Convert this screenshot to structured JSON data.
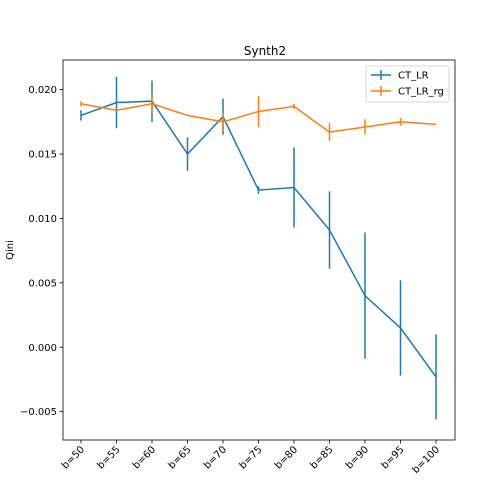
{
  "chart_data": {
    "type": "line",
    "title": "Synth2",
    "xlabel": "",
    "ylabel": "Qini",
    "categories": [
      "b=50",
      "b=55",
      "b=60",
      "b=65",
      "b=70",
      "b=75",
      "b=80",
      "b=85",
      "b=90",
      "b=95",
      "b=100"
    ],
    "ylim": [
      -0.0072,
      0.0223
    ],
    "yticks": [
      -0.005,
      0.0,
      0.005,
      0.01,
      0.015,
      0.02
    ],
    "ytick_labels": [
      "−0.005",
      "0.000",
      "0.005",
      "0.010",
      "0.015",
      "0.020"
    ],
    "grid": false,
    "legend_position": "top-right",
    "series": [
      {
        "name": "CT_LR",
        "color": "#1f77b4",
        "values": [
          0.018,
          0.019,
          0.0191,
          0.015,
          0.0179,
          0.0122,
          0.0124,
          0.0091,
          0.004,
          0.0015,
          -0.0023
        ],
        "errors": [
          0.0004,
          0.002,
          0.0016,
          0.0013,
          0.0014,
          0.0003,
          0.0031,
          0.003,
          0.0049,
          0.0037,
          0.0033
        ]
      },
      {
        "name": "CT_LR_rg",
        "color": "#ff7f0e",
        "values": [
          0.0189,
          0.0184,
          0.0189,
          0.018,
          0.0175,
          0.0183,
          0.0187,
          0.0167,
          0.0171,
          0.0175,
          0.0173
        ],
        "errors": [
          0.0002,
          0.0,
          0.0008,
          0.0,
          0.0007,
          0.0012,
          0.0002,
          0.0007,
          0.0006,
          0.0003,
          0.0
        ]
      }
    ]
  }
}
